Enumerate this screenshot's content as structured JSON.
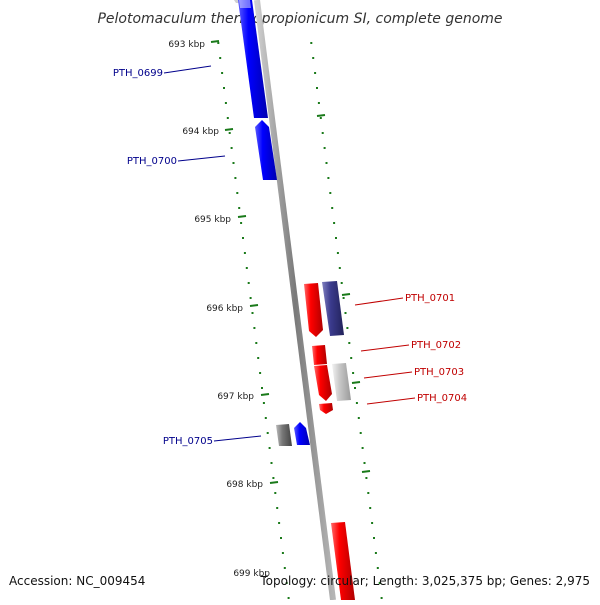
{
  "title": "Pelotomaculum thermopropionicum SI, complete genome",
  "colors": {
    "plus_strand": "#0000ff",
    "minus_strand": "#ff0000",
    "other_plus": "#3a3a8c",
    "other_minus": "#c8c8c8",
    "backbone": "#888888",
    "tick": "#1a7a1a",
    "plus_label": "#00008b",
    "minus_label": "#c00000"
  },
  "ruler": {
    "unit": "kbp",
    "ticks": [
      {
        "label": "693 kbp"
      },
      {
        "label": "694 kbp"
      },
      {
        "label": "695 kbp"
      },
      {
        "label": "696 kbp"
      },
      {
        "label": "697 kbp"
      },
      {
        "label": "698 kbp"
      },
      {
        "label": "699 kbp"
      }
    ]
  },
  "genes": [
    {
      "label": "PTH_0699",
      "strand": "+"
    },
    {
      "label": "PTH_0700",
      "strand": "+"
    },
    {
      "label": "PTH_0701",
      "strand": "-"
    },
    {
      "label": "PTH_0702",
      "strand": "-"
    },
    {
      "label": "PTH_0703",
      "strand": "-"
    },
    {
      "label": "PTH_0704",
      "strand": "-"
    },
    {
      "label": "PTH_0705",
      "strand": "+"
    }
  ],
  "footer": {
    "accession": "Accession: NC_009454",
    "summary": "Topology: circular; Length: 3,025,375 bp; Genes: 2,975"
  }
}
